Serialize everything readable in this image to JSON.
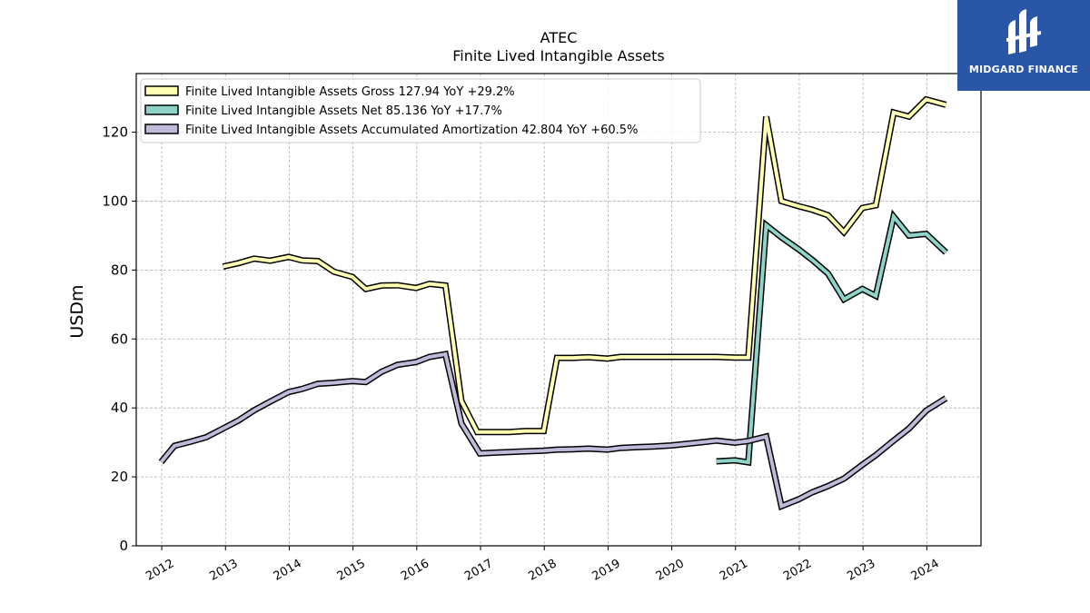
{
  "brand": {
    "name": "MIDGARD FINANCE",
    "bg_color": "#2a56a8"
  },
  "chart_data": {
    "type": "line",
    "title": "ATEC",
    "subtitle": "Finite Lived Intangible Assets",
    "xlabel": "",
    "ylabel": "USDm",
    "xlim": [
      2011.6,
      2024.85
    ],
    "ylim": [
      0,
      137
    ],
    "y_ticks": [
      0,
      20,
      40,
      60,
      80,
      100,
      120
    ],
    "x_ticks": [
      2012,
      2013,
      2014,
      2015,
      2016,
      2017,
      2018,
      2019,
      2020,
      2021,
      2022,
      2023,
      2024
    ],
    "grid": true,
    "legend_position": "top-left",
    "series": [
      {
        "name": "Finite Lived Intangible Assets Gross  127.94 YoY +29.2%",
        "color": "#ffffb3",
        "points": [
          [
            2012.96,
            81
          ],
          [
            2013.2,
            82
          ],
          [
            2013.45,
            83.3
          ],
          [
            2013.7,
            82.7
          ],
          [
            2013.99,
            83.8
          ],
          [
            2014.2,
            82.8
          ],
          [
            2014.45,
            82.6
          ],
          [
            2014.7,
            79.5
          ],
          [
            2014.99,
            78
          ],
          [
            2015.2,
            74.5
          ],
          [
            2015.45,
            75.5
          ],
          [
            2015.7,
            75.6
          ],
          [
            2015.99,
            74.8
          ],
          [
            2016.2,
            76
          ],
          [
            2016.45,
            75.5
          ],
          [
            2016.7,
            42
          ],
          [
            2016.95,
            33
          ],
          [
            2017.2,
            33
          ],
          [
            2017.45,
            33
          ],
          [
            2017.7,
            33.3
          ],
          [
            2017.99,
            33.3
          ],
          [
            2018.2,
            54.5
          ],
          [
            2018.45,
            54.5
          ],
          [
            2018.7,
            54.7
          ],
          [
            2018.99,
            54.3
          ],
          [
            2019.2,
            54.8
          ],
          [
            2019.45,
            54.8
          ],
          [
            2019.7,
            54.8
          ],
          [
            2019.99,
            54.8
          ],
          [
            2020.2,
            54.8
          ],
          [
            2020.45,
            54.8
          ],
          [
            2020.7,
            54.8
          ],
          [
            2020.99,
            54.6
          ],
          [
            2021.2,
            54.6
          ],
          [
            2021.48,
            124.5
          ],
          [
            2021.72,
            100
          ],
          [
            2021.99,
            98.5
          ],
          [
            2022.2,
            97.5
          ],
          [
            2022.45,
            95.9
          ],
          [
            2022.7,
            91
          ],
          [
            2022.99,
            98
          ],
          [
            2023.2,
            98.8
          ],
          [
            2023.48,
            125.7
          ],
          [
            2023.72,
            124.5
          ],
          [
            2023.99,
            129.5
          ],
          [
            2024.3,
            127.94
          ]
        ]
      },
      {
        "name": "Finite Lived Intangible Assets Net  85.136 YoY +17.7%",
        "color": "#8dd3c7",
        "points": [
          [
            2020.7,
            24.5
          ],
          [
            2020.99,
            24.8
          ],
          [
            2021.2,
            24.2
          ],
          [
            2021.48,
            93
          ],
          [
            2021.72,
            89.5
          ],
          [
            2021.99,
            86
          ],
          [
            2022.2,
            83
          ],
          [
            2022.45,
            79
          ],
          [
            2022.7,
            71.5
          ],
          [
            2022.99,
            74.5
          ],
          [
            2023.2,
            72.5
          ],
          [
            2023.48,
            95.5
          ],
          [
            2023.72,
            90
          ],
          [
            2023.99,
            90.5
          ],
          [
            2024.3,
            85.136
          ]
        ]
      },
      {
        "name": "Finite Lived Intangible Assets Accumulated Amortization  42.804 YoY +60.5%",
        "color": "#bebada",
        "points": [
          [
            2011.99,
            24.3
          ],
          [
            2012.2,
            29
          ],
          [
            2012.45,
            30.2
          ],
          [
            2012.7,
            31.5
          ],
          [
            2012.99,
            34.3
          ],
          [
            2013.2,
            36.3
          ],
          [
            2013.45,
            39.3
          ],
          [
            2013.7,
            41.8
          ],
          [
            2013.99,
            44.6
          ],
          [
            2014.2,
            45.5
          ],
          [
            2014.45,
            47
          ],
          [
            2014.7,
            47.3
          ],
          [
            2014.99,
            47.8
          ],
          [
            2015.2,
            47.5
          ],
          [
            2015.45,
            50.5
          ],
          [
            2015.7,
            52.5
          ],
          [
            2015.99,
            53.3
          ],
          [
            2016.2,
            54.8
          ],
          [
            2016.45,
            55.6
          ],
          [
            2016.7,
            35.5
          ],
          [
            2016.99,
            26.8
          ],
          [
            2017.2,
            27
          ],
          [
            2017.45,
            27.2
          ],
          [
            2017.7,
            27.4
          ],
          [
            2017.99,
            27.6
          ],
          [
            2018.2,
            27.9
          ],
          [
            2018.45,
            28
          ],
          [
            2018.7,
            28.2
          ],
          [
            2018.99,
            27.9
          ],
          [
            2019.2,
            28.4
          ],
          [
            2019.45,
            28.6
          ],
          [
            2019.7,
            28.8
          ],
          [
            2019.99,
            29.1
          ],
          [
            2020.2,
            29.5
          ],
          [
            2020.45,
            30
          ],
          [
            2020.7,
            30.5
          ],
          [
            2020.99,
            29.9
          ],
          [
            2021.2,
            30.4
          ],
          [
            2021.48,
            31.7
          ],
          [
            2021.72,
            11.5
          ],
          [
            2021.99,
            13.5
          ],
          [
            2022.2,
            15.5
          ],
          [
            2022.45,
            17.3
          ],
          [
            2022.7,
            19.5
          ],
          [
            2022.99,
            23.5
          ],
          [
            2023.2,
            26.3
          ],
          [
            2023.48,
            30.5
          ],
          [
            2023.72,
            34
          ],
          [
            2023.99,
            39.2
          ],
          [
            2024.3,
            42.804
          ]
        ]
      }
    ]
  }
}
